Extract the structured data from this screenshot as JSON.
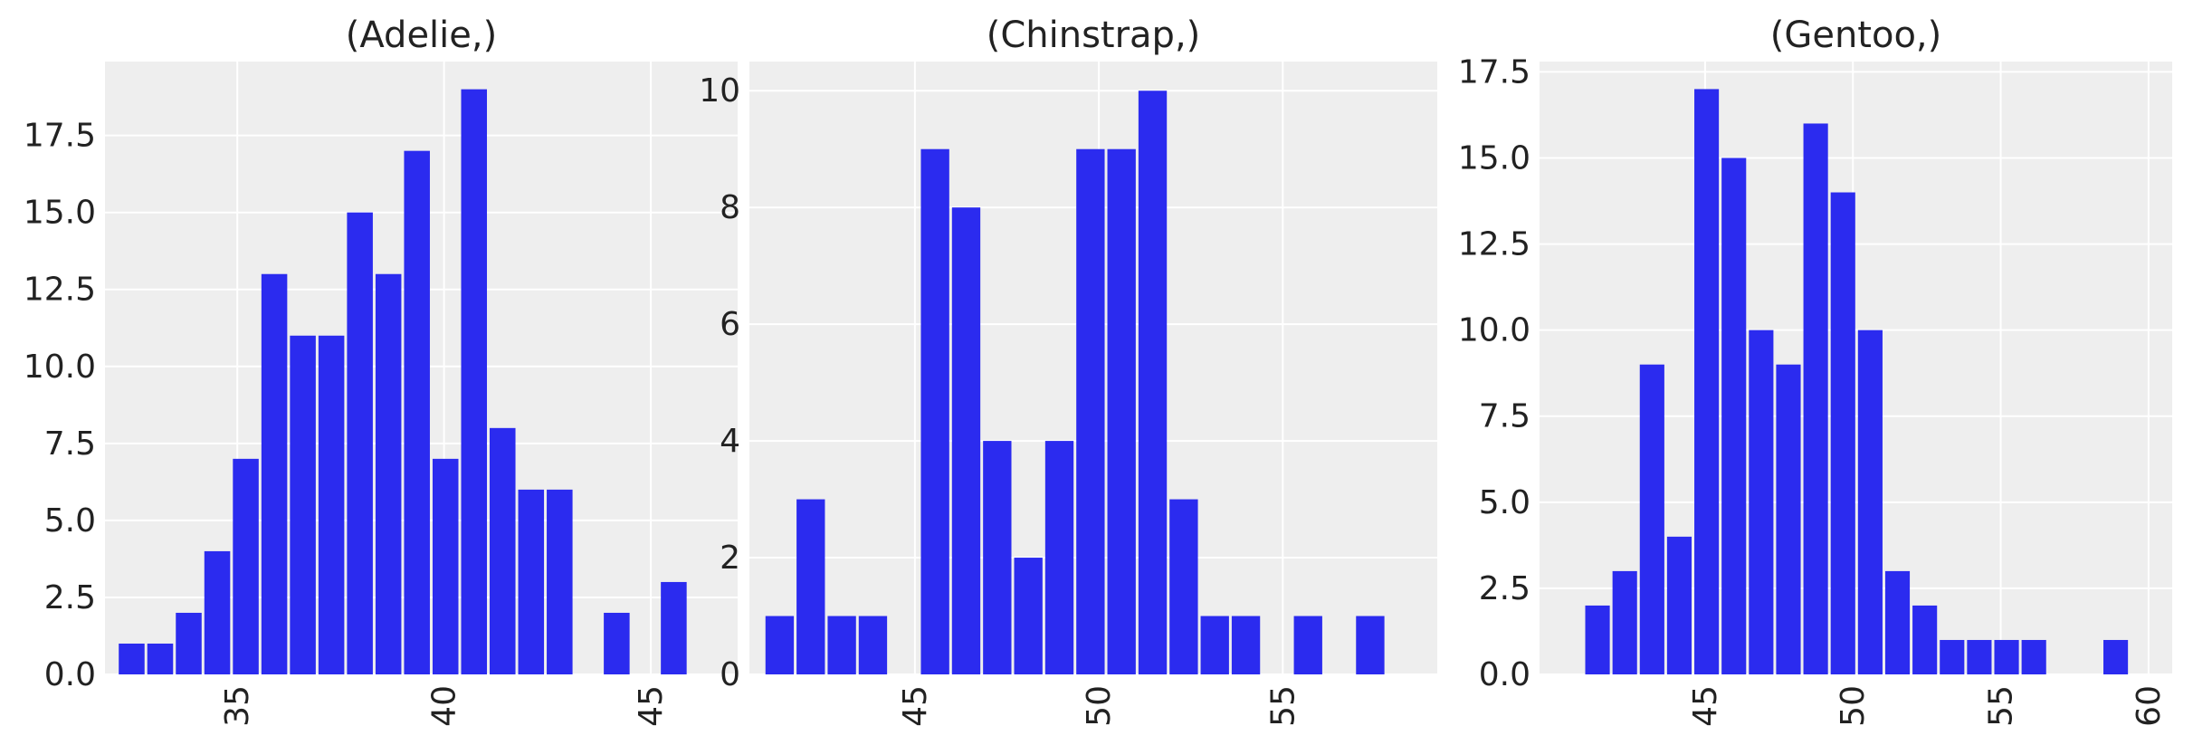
{
  "chart_data": [
    {
      "type": "bar",
      "title": "(Adelie,)",
      "xlabel": "",
      "ylabel": "",
      "xlim": [
        31.8,
        47.1
      ],
      "ylim": [
        0,
        19.9
      ],
      "xticks": [
        35,
        40,
        45
      ],
      "yticks": [
        0.0,
        2.5,
        5.0,
        7.5,
        10.0,
        12.5,
        15.0,
        17.5
      ],
      "ytick_decimals": 1,
      "grid": true,
      "bin_width": 0.69,
      "bin_start": 32.1,
      "values": [
        1,
        1,
        2,
        4,
        7,
        13,
        11,
        11,
        15,
        13,
        17,
        7,
        19,
        8,
        6,
        6,
        0,
        2,
        0,
        3
      ],
      "color": "#2b2bef"
    },
    {
      "type": "bar",
      "title": "(Chinstrap,)",
      "xlabel": "",
      "ylabel": "",
      "xlim": [
        40.5,
        59.2
      ],
      "ylim": [
        0,
        10.5
      ],
      "xticks": [
        45,
        50,
        55
      ],
      "yticks": [
        0,
        2,
        4,
        6,
        8,
        10
      ],
      "ytick_decimals": 0,
      "grid": true,
      "bin_width": 0.845,
      "bin_start": 40.9,
      "values": [
        1,
        3,
        1,
        1,
        0,
        9,
        8,
        4,
        2,
        4,
        9,
        9,
        10,
        3,
        1,
        1,
        0,
        1,
        0,
        1
      ],
      "color": "#2b2bef"
    },
    {
      "type": "bar",
      "title": "(Gentoo,)",
      "xlabel": "",
      "ylabel": "",
      "xlim": [
        39.4,
        60.8
      ],
      "ylim": [
        0,
        17.8
      ],
      "xticks": [
        45,
        50,
        55,
        60
      ],
      "yticks": [
        0.0,
        2.5,
        5.0,
        7.5,
        10.0,
        12.5,
        15.0,
        17.5
      ],
      "ytick_decimals": 1,
      "grid": true,
      "bin_width": 0.9225,
      "bin_start": 40.9,
      "values": [
        2,
        3,
        9,
        4,
        17,
        15,
        10,
        9,
        16,
        14,
        10,
        3,
        2,
        1,
        1,
        1,
        1,
        0,
        0,
        1
      ],
      "color": "#2b2bef"
    }
  ],
  "style": {
    "background": "#ffffff",
    "axes_facecolor": "#eeeeee",
    "grid_color": "#ffffff",
    "text_color": "#222222"
  }
}
